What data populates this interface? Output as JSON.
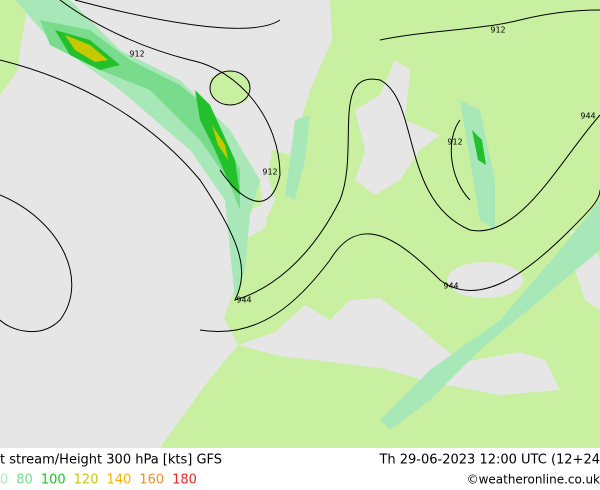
{
  "header": {
    "title": "t stream/Height 300 hPa [kts] GFS",
    "valid_time": "Th 29-06-2023 12:00 UTC (12+24"
  },
  "legend": [
    {
      "label": "0",
      "color": "#a8e8b8"
    },
    {
      "label": "80",
      "color": "#78dc8c"
    },
    {
      "label": "100",
      "color": "#22c02a"
    },
    {
      "label": "120",
      "color": "#c8c800"
    },
    {
      "label": "140",
      "color": "#f0b400"
    },
    {
      "label": "160",
      "color": "#f08c28"
    },
    {
      "label": "180",
      "color": "#e62828"
    }
  ],
  "contour_labels": [
    "912",
    "912",
    "912",
    "912",
    "944",
    "944",
    "944"
  ],
  "credit": "©weatheronline.co.uk"
}
